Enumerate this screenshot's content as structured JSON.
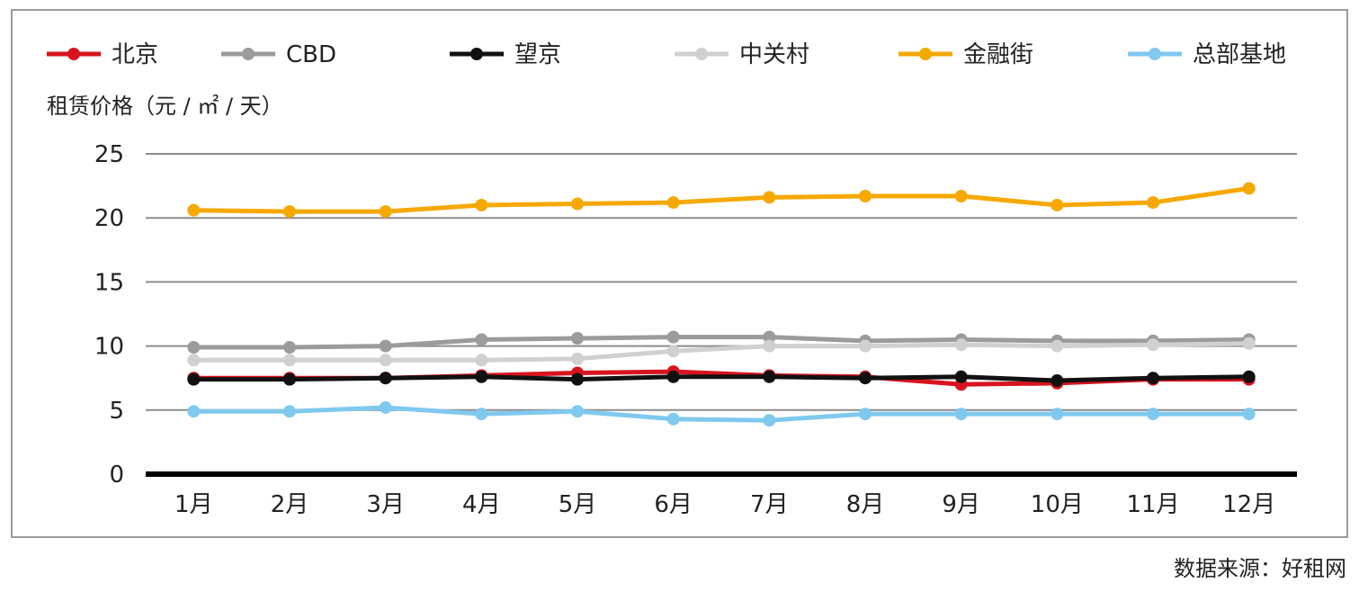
{
  "chart_data": {
    "type": "line",
    "ylabel": "租赁价格（元 / ㎡ / 天）",
    "categories": [
      "1月",
      "2月",
      "3月",
      "4月",
      "5月",
      "6月",
      "7月",
      "8月",
      "9月",
      "10月",
      "11月",
      "12月"
    ],
    "ylim": [
      0,
      25
    ],
    "yticks": [
      0,
      5,
      10,
      15,
      20,
      25
    ],
    "grid": true,
    "legend_position": "top",
    "series": [
      {
        "name": "北京",
        "color": "#d7141e",
        "values": [
          7.5,
          7.5,
          7.5,
          7.7,
          7.9,
          8.0,
          7.7,
          7.6,
          7.0,
          7.1,
          7.4,
          7.4
        ]
      },
      {
        "name": "CBD",
        "color": "#9b9b9b",
        "values": [
          9.9,
          9.9,
          10.0,
          10.5,
          10.6,
          10.7,
          10.7,
          10.4,
          10.5,
          10.4,
          10.4,
          10.5
        ]
      },
      {
        "name": "望京",
        "color": "#111111",
        "values": [
          7.4,
          7.4,
          7.5,
          7.6,
          7.4,
          7.6,
          7.6,
          7.5,
          7.6,
          7.3,
          7.5,
          7.6
        ]
      },
      {
        "name": "中关村",
        "color": "#d0d0d0",
        "values": [
          8.9,
          8.9,
          8.9,
          8.9,
          9.0,
          9.6,
          10.0,
          10.0,
          10.1,
          10.0,
          10.1,
          10.2
        ]
      },
      {
        "name": "金融街",
        "color": "#f5a800",
        "values": [
          20.6,
          20.5,
          20.5,
          21.0,
          21.1,
          21.2,
          21.6,
          21.7,
          21.7,
          21.0,
          21.2,
          22.3
        ]
      },
      {
        "name": "总部基地",
        "color": "#7fc9ef",
        "values": [
          4.9,
          4.9,
          5.2,
          4.7,
          4.9,
          4.3,
          4.2,
          4.7,
          4.7,
          4.7,
          4.7,
          4.7
        ]
      }
    ]
  },
  "source_note": "数据来源：好租网"
}
